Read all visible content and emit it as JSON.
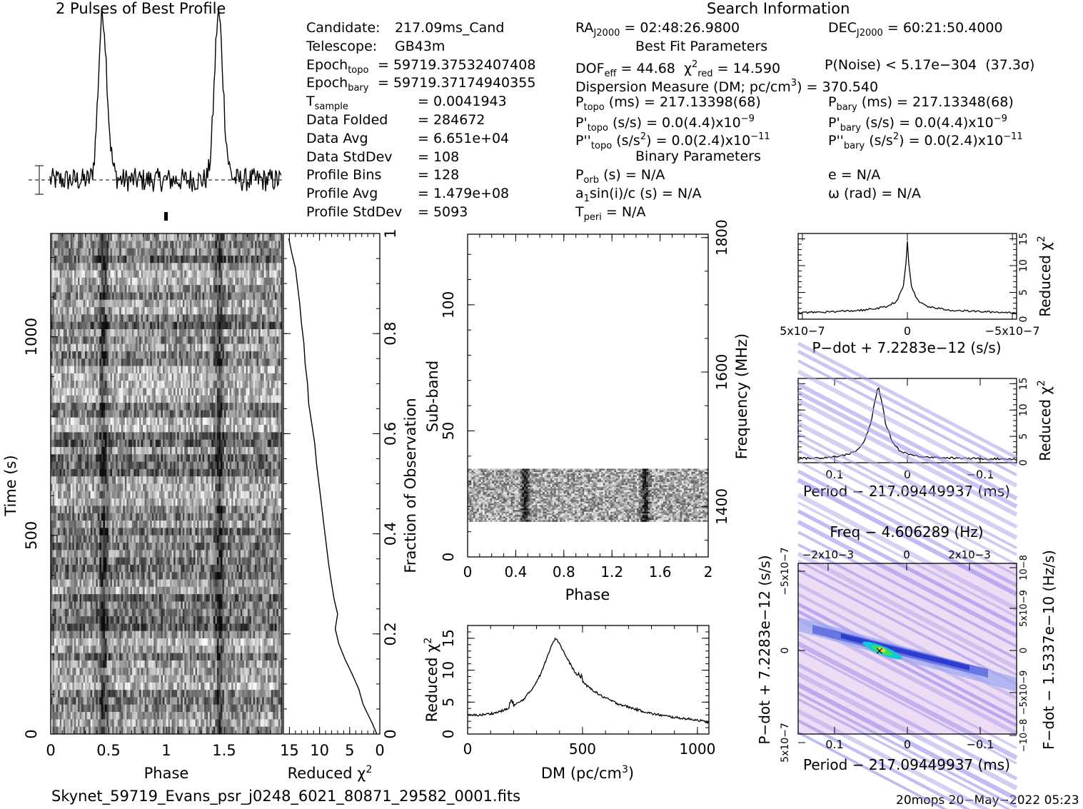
{
  "header": {
    "profile_title": "2 Pulses of Best Profile",
    "search_title": "Search Information"
  },
  "info_left": [
    {
      "label": "Candidate:",
      "value": "217.09ms_Cand"
    },
    {
      "label": "Telescope:",
      "value": "GB43m"
    },
    {
      "label": "Epoch",
      "sub": "topo",
      "value": "= 59719.37532407408"
    },
    {
      "label": "Epoch",
      "sub": "bary",
      "value": "= 59719.37174940355"
    },
    {
      "label": "T",
      "sub": "sample",
      "value": "=   0.0041943"
    },
    {
      "label": "Data Folded",
      "value": "=   284672"
    },
    {
      "label": "Data Avg",
      "value": "=   6.651e+04"
    },
    {
      "label": "Data StdDev",
      "value": "=   108"
    },
    {
      "label": "Profile Bins",
      "value": "=   128"
    },
    {
      "label": "Profile Avg",
      "value": "=   1.479e+08"
    },
    {
      "label": "Profile StdDev",
      "value": "=   5093"
    }
  ],
  "info_right": {
    "ra": "RA",
    "ra_sub": "J2000",
    "ra_value": "= 02:48:26.9800",
    "dec": "DEC",
    "dec_sub": "J2000",
    "dec_value": "= 60:21:50.4000",
    "best_fit_title": "Best Fit Parameters",
    "dof": "DOF",
    "dof_sub": "eff",
    "dof_value": "= 44.68",
    "chi": "χ",
    "chi_sup": "2",
    "chi_sub": "red",
    "chi_value": "= 14.590",
    "pnoise": "P(Noise) < 5.17e−304",
    "sigma": "(37.3σ)",
    "dm_line_a": "Dispersion Measure (DM; pc/cm",
    "dm_line_sup": "3",
    "dm_line_b": ") = 370.540",
    "ptopo_label": "P",
    "ptopo_sub": "topo",
    "ptopo_value": "(ms) =  217.13398(68)",
    "pbary_label": "P",
    "pbary_sub": "bary",
    "pbary_value": "(ms) =  217.13348(68)",
    "pdtopo_label": "P'",
    "pdtopo_sub": "topo",
    "pdtopo_value": "(s/s) = 0.0(4.4)x10",
    "pdtopo_exp": "−9",
    "pdbary_label": "P'",
    "pdbary_sub": "bary",
    "pdbary_value": "(s/s) = 0.0(4.4)x10",
    "pdbary_exp": "−9",
    "pddtopo_label": "P''",
    "pddtopo_sub": "topo",
    "pddtopo_value_a": "(s/s",
    "pddtopo_value_sup": "2",
    "pddtopo_value_b": ") = 0.0(2.4)x10",
    "pddtopo_exp": "−11",
    "pddbary_label": "P''",
    "pddbary_sub": "bary",
    "pddbary_value_a": "(s/s",
    "pddbary_value_sup": "2",
    "pddbary_value_b": ") = 0.0(2.4)x10",
    "pddbary_exp": "−11",
    "binary_title": "Binary Parameters",
    "porb_label": "P",
    "porb_sub": "orb",
    "porb_value": "(s) = N/A",
    "ecc": "e = N/A",
    "asini_a": "a",
    "asini_sub": "1",
    "asini_b": "sin(i)/c (s) = N/A",
    "omega": "ω (rad) = N/A",
    "tperi_label": "T",
    "tperi_sub": "peri",
    "tperi_value": "= N/A"
  },
  "footer": {
    "filename": "Skynet_59719_Evans_psr_j0248_6021_80871_29582_0001.fits",
    "stamp": "20mops 20−May−2022 05:23"
  },
  "chart_data": [
    {
      "type": "line",
      "title": "2 Pulses of Best Profile",
      "x_range": [
        0,
        2
      ],
      "peaks_phase": [
        0.45,
        1.45
      ],
      "note_markers": "error bar at left, dashed baseline"
    },
    {
      "type": "heatmap",
      "xlabel": "Phase",
      "ylabel": "Time (s)",
      "x_ticks": [
        "0",
        "0.5",
        "1",
        "1.5"
      ],
      "y_ticks": [
        "0",
        "500",
        "1000"
      ],
      "x_range": [
        0,
        2
      ],
      "y_range": [
        0,
        1260
      ],
      "pulse_phase": [
        0.45,
        1.45
      ]
    },
    {
      "type": "line",
      "xlabel": "Reduced χ2",
      "ylabel": "Fraction of Observation",
      "x_ticks": [
        "15",
        "10",
        "5",
        "0"
      ],
      "y_ticks": [
        "0",
        "0.2",
        "0.4",
        "0.6",
        "0.8",
        "1"
      ],
      "x_range": [
        16,
        0
      ],
      "y_range": [
        0,
        1
      ],
      "points": [
        [
          0.5,
          0.0
        ],
        [
          1.2,
          0.02
        ],
        [
          2.0,
          0.04
        ],
        [
          2.8,
          0.06
        ],
        [
          3.5,
          0.09
        ],
        [
          4.6,
          0.12
        ],
        [
          5.8,
          0.15
        ],
        [
          6.8,
          0.18
        ],
        [
          7.4,
          0.21
        ],
        [
          7.0,
          0.24
        ],
        [
          7.6,
          0.27
        ],
        [
          8.0,
          0.3
        ],
        [
          8.5,
          0.34
        ],
        [
          8.9,
          0.38
        ],
        [
          9.3,
          0.42
        ],
        [
          9.7,
          0.46
        ],
        [
          10.1,
          0.5
        ],
        [
          10.5,
          0.54
        ],
        [
          10.8,
          0.58
        ],
        [
          11.3,
          0.62
        ],
        [
          11.8,
          0.66
        ],
        [
          12.0,
          0.7
        ],
        [
          12.4,
          0.74
        ],
        [
          12.6,
          0.78
        ],
        [
          13.0,
          0.82
        ],
        [
          13.3,
          0.86
        ],
        [
          13.7,
          0.9
        ],
        [
          14.0,
          0.93
        ],
        [
          14.6,
          0.96
        ],
        [
          15.1,
          0.99
        ]
      ]
    },
    {
      "type": "heatmap",
      "xlabel": "Phase",
      "ylabel": "Sub-band",
      "y2label": "Frequency (MHz)",
      "x_ticks": [
        "0",
        "0.4",
        "0.8",
        "1.2",
        "1.6",
        "2"
      ],
      "y_ticks": [
        "0",
        "50",
        "100"
      ],
      "y2_ticks": [
        "1400",
        "1600",
        "1800"
      ],
      "x_range": [
        0,
        2
      ],
      "y_range": [
        0,
        128
      ],
      "data_band": [
        14,
        35
      ],
      "pulse_phase": [
        0.47,
        1.47
      ]
    },
    {
      "type": "line",
      "xlabel": "DM (pc/cm3)",
      "ylabel": "Reduced χ2",
      "x_ticks": [
        "0",
        "500",
        "1000"
      ],
      "y_ticks": [
        "0",
        "5",
        "10",
        "15"
      ],
      "x_range": [
        0,
        1050
      ],
      "y_range": [
        0,
        17
      ],
      "points": [
        [
          0,
          2.9
        ],
        [
          60,
          3.0
        ],
        [
          120,
          3.3
        ],
        [
          180,
          4.0
        ],
        [
          240,
          5.3
        ],
        [
          280,
          7.0
        ],
        [
          320,
          9.5
        ],
        [
          350,
          12.5
        ],
        [
          370,
          14.4
        ],
        [
          385,
          15.0
        ],
        [
          400,
          14.2
        ],
        [
          430,
          12.0
        ],
        [
          470,
          9.5
        ],
        [
          520,
          7.5
        ],
        [
          580,
          6.0
        ],
        [
          650,
          4.8
        ],
        [
          720,
          4.0
        ],
        [
          800,
          3.2
        ],
        [
          900,
          2.6
        ],
        [
          1000,
          2.2
        ],
        [
          1050,
          1.8
        ]
      ]
    },
    {
      "type": "line",
      "xlabel": "P−dot + 7.2283e−12 (s/s)",
      "ylabel": "Reduced χ2",
      "x_ticks": [
        "5x10−7",
        "0",
        "−5x10−7"
      ],
      "y_ticks": [
        "0",
        "5",
        "10",
        "15"
      ],
      "x_range": [
        5.2e-07,
        -5.2e-07
      ],
      "y_range": [
        0,
        16
      ],
      "points": [
        [
          5.2e-07,
          1.2
        ],
        [
          3.5e-07,
          1.4
        ],
        [
          2e-07,
          1.7
        ],
        [
          1e-07,
          2.3
        ],
        [
          5e-08,
          3.4
        ],
        [
          2e-08,
          6.0
        ],
        [
          5e-09,
          11.0
        ],
        [
          0.0,
          14.6
        ],
        [
          -5e-09,
          11.0
        ],
        [
          -2e-08,
          6.0
        ],
        [
          -5e-08,
          3.4
        ],
        [
          -1e-07,
          2.3
        ],
        [
          -2e-07,
          1.7
        ],
        [
          -3.5e-07,
          1.4
        ],
        [
          -5.2e-07,
          1.2
        ]
      ]
    },
    {
      "type": "line",
      "xlabel": "Period − 217.09449937 (ms)",
      "ylabel": "Reduced χ2",
      "x_ticks": [
        "0.1",
        "0",
        "−0.1"
      ],
      "y_ticks": [
        "0",
        "5",
        "10",
        "15"
      ],
      "x_range": [
        0.15,
        -0.15
      ],
      "y_range": [
        0,
        16
      ],
      "points": [
        [
          0.15,
          0.8
        ],
        [
          0.12,
          0.9
        ],
        [
          0.09,
          1.3
        ],
        [
          0.07,
          2.2
        ],
        [
          0.06,
          3.8
        ],
        [
          0.05,
          7.5
        ],
        [
          0.045,
          11.5
        ],
        [
          0.04,
          14.5
        ],
        [
          0.035,
          11.5
        ],
        [
          0.03,
          7.5
        ],
        [
          0.02,
          3.8
        ],
        [
          0.01,
          2.2
        ],
        [
          -0.01,
          1.3
        ],
        [
          -0.04,
          1.0
        ],
        [
          -0.08,
          0.8
        ],
        [
          -0.15,
          0.7
        ]
      ]
    },
    {
      "type": "heatmap",
      "title": "Freq − 4.606289 (Hz)",
      "xlabel": "Period − 217.09449937 (ms)",
      "ylabel": "P−dot + 7.2283e−12 (s/s)",
      "y2label": "F−dot − 1.5337e−10 (Hz/s)",
      "x_ticks": [
        "0.1",
        "0",
        "−0.1"
      ],
      "x2_ticks": [
        "−2x10−3",
        "0",
        "2x10−3"
      ],
      "y_ticks": [
        "5x10−7",
        "0",
        "−5x10−7"
      ],
      "y2_ticks": [
        "−10−8",
        "−5x10−9",
        "0",
        "5x10−9",
        "10−8"
      ],
      "peak": [
        0.04,
        0
      ]
    }
  ]
}
